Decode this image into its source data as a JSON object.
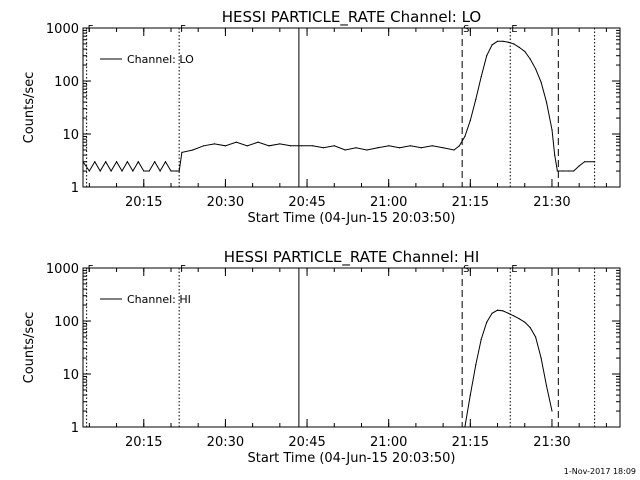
{
  "footer_date": "1-Nov-2017 18:09",
  "colors": {
    "background": "#ffffff",
    "foreground": "#000000"
  },
  "chart_data": [
    {
      "type": "line",
      "title": "HESSI PARTICLE_RATE Channel: LO",
      "xlabel": "Start Time (04-Jun-15 20:03:50)",
      "ylabel": "Counts/sec",
      "yscale": "log",
      "ylim": [
        1,
        1000
      ],
      "xlim": [
        "20:03:50",
        "21:42:30"
      ],
      "x_unit": "time (HH:MM)",
      "x_ticks": [
        "20:15",
        "20:30",
        "20:45",
        "21:00",
        "21:15",
        "21:30"
      ],
      "y_ticks": [
        "1",
        "10",
        "100",
        "1000"
      ],
      "legend": {
        "placement": "top-left",
        "entries": [
          "Channel: LO"
        ]
      },
      "markers": [
        {
          "time": "20:04:30",
          "label": "F",
          "style": "dotted"
        },
        {
          "time": "20:21:30",
          "label": "F",
          "style": "dotted"
        },
        {
          "time": "20:43:30",
          "label": "",
          "style": "solid"
        },
        {
          "time": "21:13:30",
          "label": "S",
          "style": "dashed"
        },
        {
          "time": "21:22:20",
          "label": "E",
          "style": "dotted"
        },
        {
          "time": "21:31:10",
          "label": "",
          "style": "dashed"
        },
        {
          "time": "21:37:50",
          "label": "",
          "style": "dotted"
        }
      ],
      "series": [
        {
          "name": "Channel: LO",
          "x": [
            "20:03:50",
            "20:05:00",
            "20:06:00",
            "20:07:00",
            "20:08:00",
            "20:09:00",
            "20:10:00",
            "20:11:00",
            "20:12:00",
            "20:13:00",
            "20:14:00",
            "20:15:00",
            "20:16:00",
            "20:17:00",
            "20:18:00",
            "20:19:00",
            "20:20:00",
            "20:21:00",
            "20:21:30",
            "20:22:00",
            "20:24:00",
            "20:26:00",
            "20:28:00",
            "20:30:00",
            "20:32:00",
            "20:34:00",
            "20:36:00",
            "20:38:00",
            "20:40:00",
            "20:42:00",
            "20:44:00",
            "20:46:00",
            "20:48:00",
            "20:50:00",
            "20:52:00",
            "20:54:00",
            "20:56:00",
            "20:58:00",
            "21:00:00",
            "21:02:00",
            "21:04:00",
            "21:06:00",
            "21:08:00",
            "21:10:00",
            "21:12:00",
            "21:13:00",
            "21:14:00",
            "21:15:00",
            "21:16:00",
            "21:17:00",
            "21:18:00",
            "21:19:00",
            "21:20:00",
            "21:21:00",
            "21:22:00",
            "21:23:00",
            "21:24:00",
            "21:25:00",
            "21:26:00",
            "21:27:00",
            "21:28:00",
            "21:29:00",
            "21:30:00",
            "21:30:30",
            "21:31:00",
            "21:32:00",
            "21:33:00",
            "21:34:00",
            "21:35:00",
            "21:36:00",
            "21:37:50"
          ],
          "y": [
            3,
            2,
            3,
            2,
            3,
            2,
            3,
            2,
            3,
            2,
            3,
            2,
            2,
            3,
            2,
            3,
            2,
            2,
            2,
            4.5,
            5,
            6,
            6.5,
            6,
            7,
            6,
            7,
            6,
            6.5,
            6,
            6,
            6,
            5.5,
            6,
            5,
            5.5,
            5,
            5.5,
            6,
            5.5,
            6,
            5.5,
            6,
            5.5,
            5,
            6,
            9,
            18,
            45,
            120,
            300,
            480,
            560,
            560,
            540,
            500,
            430,
            360,
            260,
            170,
            95,
            40,
            12,
            4,
            2,
            2,
            2,
            2,
            2.5,
            3,
            3
          ]
        }
      ]
    },
    {
      "type": "line",
      "title": "HESSI PARTICLE_RATE Channel: HI",
      "xlabel": "Start Time (04-Jun-15 20:03:50)",
      "ylabel": "Counts/sec",
      "yscale": "log",
      "ylim": [
        1,
        1000
      ],
      "xlim": [
        "20:03:50",
        "21:42:30"
      ],
      "x_unit": "time (HH:MM)",
      "x_ticks": [
        "20:15",
        "20:30",
        "20:45",
        "21:00",
        "21:15",
        "21:30"
      ],
      "y_ticks": [
        "1",
        "10",
        "100",
        "1000"
      ],
      "legend": {
        "placement": "top-left",
        "entries": [
          "Channel: HI"
        ]
      },
      "markers": [
        {
          "time": "20:04:30",
          "label": "F",
          "style": "dotted"
        },
        {
          "time": "20:21:30",
          "label": "F",
          "style": "dotted"
        },
        {
          "time": "20:43:30",
          "label": "",
          "style": "solid"
        },
        {
          "time": "21:13:30",
          "label": "S",
          "style": "dashed"
        },
        {
          "time": "21:22:20",
          "label": "E",
          "style": "dotted"
        },
        {
          "time": "21:31:10",
          "label": "",
          "style": "dashed"
        },
        {
          "time": "21:37:50",
          "label": "",
          "style": "dotted"
        }
      ],
      "series": [
        {
          "name": "Channel: HI",
          "x": [
            "21:14:00",
            "21:15:00",
            "21:16:00",
            "21:17:00",
            "21:18:00",
            "21:19:00",
            "21:20:00",
            "21:21:00",
            "21:22:00",
            "21:23:00",
            "21:24:00",
            "21:25:00",
            "21:26:00",
            "21:27:00",
            "21:28:00",
            "21:29:00",
            "21:30:00"
          ],
          "y": [
            1,
            4,
            15,
            45,
            95,
            140,
            160,
            155,
            140,
            125,
            110,
            95,
            75,
            50,
            20,
            6,
            2
          ]
        }
      ]
    }
  ]
}
